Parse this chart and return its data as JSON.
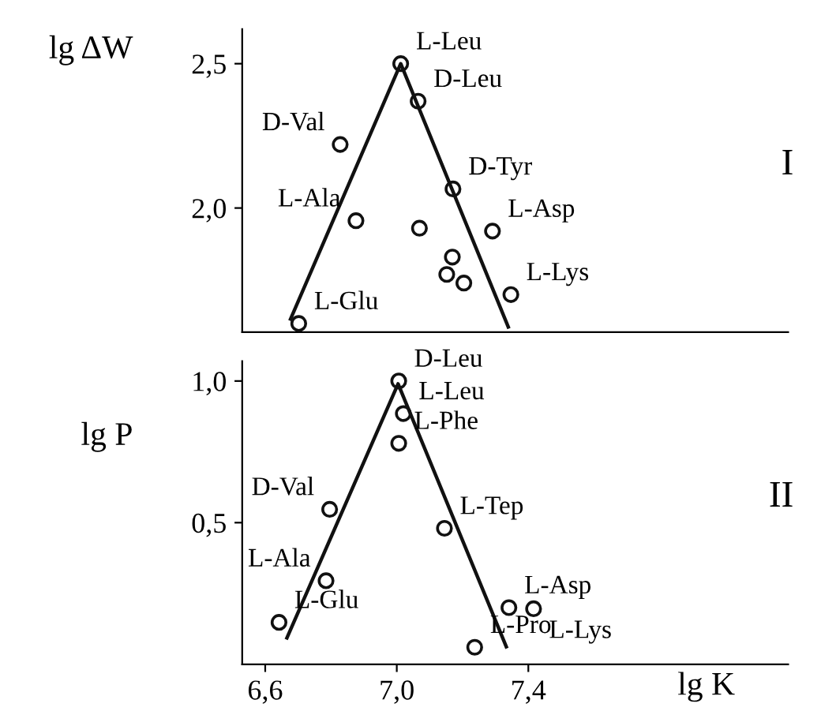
{
  "chart_data": [
    {
      "type": "scatter",
      "ylabel": "lg ΔW",
      "xlim": [
        6.53,
        8.19
      ],
      "ylim": [
        1.57,
        2.62
      ],
      "yticks": [
        {
          "value": 2.0,
          "label": "2,0"
        },
        {
          "value": 2.5,
          "label": "2,5"
        }
      ],
      "tick_labels": "y",
      "grid": false,
      "legend": false,
      "series": [
        {
          "color": "#111111",
          "marker": "circle",
          "x": [
            7.012,
            7.065,
            6.828,
            7.171,
            6.876,
            7.069,
            7.291,
            7.169,
            7.152,
            7.204,
            7.347,
            6.702
          ],
          "values": [
            2.5,
            2.37,
            2.22,
            2.066,
            1.956,
            1.93,
            1.92,
            1.83,
            1.77,
            1.74,
            1.7,
            1.6
          ]
        },
        {
          "type": "line",
          "color": "#111111",
          "line_style": "solid",
          "x": [
            6.677,
            7.012,
            7.339
          ],
          "values": [
            1.615,
            2.5,
            1.588
          ]
        }
      ],
      "annotations": [
        {
          "text": "L-Leu",
          "x": 7.012,
          "y": 2.5
        },
        {
          "text": "D-Leu",
          "x": 7.065,
          "y": 2.37
        },
        {
          "text": "D-Val",
          "x": 6.828,
          "y": 2.22
        },
        {
          "text": "D-Tyr",
          "x": 7.171,
          "y": 2.066
        },
        {
          "text": "L-Ala",
          "x": 6.876,
          "y": 1.956
        },
        {
          "text": "L-Asp",
          "x": 7.291,
          "y": 1.92
        },
        {
          "text": "L-Lys",
          "x": 7.347,
          "y": 1.7
        },
        {
          "text": "L-Glu",
          "x": 6.702,
          "y": 1.6
        },
        "I"
      ]
    },
    {
      "type": "scatter",
      "ylabel": "lg P",
      "xlabel": "lg K",
      "xlim": [
        6.53,
        8.19
      ],
      "ylim": [
        0,
        1.07
      ],
      "xticks": [
        {
          "value": 6.6,
          "label": "6,6"
        },
        {
          "value": 7.0,
          "label": "7,0"
        },
        {
          "value": 7.4,
          "label": "7,4"
        }
      ],
      "yticks": [
        {
          "value": 0.5,
          "label": "0,5"
        },
        {
          "value": 1.0,
          "label": "1,0"
        }
      ],
      "grid": false,
      "legend": false,
      "series": [
        {
          "color": "#111111",
          "marker": "circle",
          "x": [
            7.006,
            7.02,
            7.006,
            6.796,
            7.145,
            6.785,
            6.642,
            7.341,
            7.416,
            7.237
          ],
          "values": [
            1.0,
            0.885,
            0.78,
            0.547,
            0.48,
            0.295,
            0.148,
            0.2,
            0.196,
            0.06
          ]
        },
        {
          "type": "line",
          "color": "#111111",
          "line_style": "solid",
          "x": [
            6.666,
            7.004,
            7.333
          ],
          "values": [
            0.093,
            0.99,
            0.062
          ]
        }
      ],
      "annotations": [
        {
          "text": "D-Leu",
          "x": 7.006,
          "y": 1.0
        },
        {
          "text": "L-Leu",
          "x": 7.02,
          "y": 0.885
        },
        {
          "text": "L-Phe",
          "x": 7.006,
          "y": 0.78
        },
        {
          "text": "D-Val",
          "x": 6.796,
          "y": 0.547
        },
        {
          "text": "L-Tep",
          "x": 7.145,
          "y": 0.48
        },
        {
          "text": "L-Ala",
          "x": 6.785,
          "y": 0.295
        },
        {
          "text": "L-Glu",
          "x": 6.642,
          "y": 0.148
        },
        {
          "text": "L-Asp",
          "x": 7.341,
          "y": 0.2
        },
        {
          "text": "L-Lys",
          "x": 7.416,
          "y": 0.196
        },
        {
          "text": "L-Pro",
          "x": 7.237,
          "y": 0.06
        },
        "II"
      ]
    }
  ]
}
